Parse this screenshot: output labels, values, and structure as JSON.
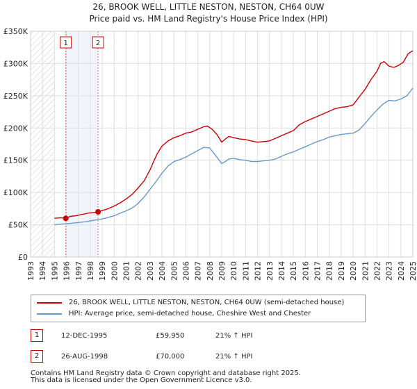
{
  "header": {
    "title_line1": "26, BROOK WELL, LITTLE NESTON, NESTON, CH64 0UW",
    "title_line2": "Price paid vs. HM Land Registry's House Price Index (HPI)"
  },
  "chart_data": {
    "type": "line",
    "x_range": [
      1993,
      2025
    ],
    "y_range": [
      0,
      350000
    ],
    "y_ticks": [
      0,
      50000,
      100000,
      150000,
      200000,
      250000,
      300000,
      350000
    ],
    "y_tick_labels": [
      "£0",
      "£50K",
      "£100K",
      "£150K",
      "£200K",
      "£250K",
      "£300K",
      "£350K"
    ],
    "x_ticks": [
      "1993",
      "1994",
      "1995",
      "1996",
      "1997",
      "1998",
      "1999",
      "2000",
      "2001",
      "2002",
      "2003",
      "2004",
      "2005",
      "2006",
      "2007",
      "2008",
      "2009",
      "2010",
      "2011",
      "2012",
      "2013",
      "2014",
      "2015",
      "2016",
      "2017",
      "2018",
      "2019",
      "2020",
      "2021",
      "2022",
      "2023",
      "2024",
      "2025"
    ],
    "grid": true,
    "hatched_until": 1995.0,
    "series": [
      {
        "name": "26, BROOK WELL, LITTLE NESTON, NESTON, CH64 0UW (semi-detached house)",
        "color": "#cc0000",
        "x": [
          1995.0,
          1995.5,
          1995.95,
          1996.3,
          1996.8,
          1997.3,
          1997.8,
          1998.3,
          1998.65,
          1999.0,
          1999.5,
          2000.0,
          2000.5,
          2001.0,
          2001.5,
          2002.0,
          2002.5,
          2003.0,
          2003.3,
          2003.6,
          2004.0,
          2004.5,
          2005.0,
          2005.5,
          2006.0,
          2006.5,
          2007.0,
          2007.5,
          2007.8,
          2008.2,
          2008.6,
          2009.0,
          2009.3,
          2009.6,
          2010.0,
          2010.5,
          2011.0,
          2011.5,
          2012.0,
          2012.5,
          2013.0,
          2013.5,
          2014.0,
          2014.5,
          2015.0,
          2015.5,
          2016.0,
          2016.5,
          2017.0,
          2017.5,
          2018.0,
          2018.5,
          2019.0,
          2019.5,
          2020.0,
          2020.5,
          2021.0,
          2021.5,
          2022.0,
          2022.3,
          2022.6,
          2023.0,
          2023.4,
          2023.8,
          2024.2,
          2024.6,
          2025.0
        ],
        "y": [
          60000,
          61000,
          59950,
          63000,
          64000,
          66000,
          68000,
          69000,
          70000,
          72000,
          75000,
          79000,
          84000,
          90000,
          97000,
          107000,
          118000,
          135000,
          148000,
          160000,
          172000,
          180000,
          185000,
          188000,
          192000,
          194000,
          198000,
          202000,
          203000,
          198000,
          190000,
          178000,
          183000,
          187000,
          185000,
          183000,
          182000,
          180000,
          178000,
          179000,
          180000,
          184000,
          188000,
          192000,
          196000,
          205000,
          210000,
          214000,
          218000,
          222000,
          226000,
          230000,
          232000,
          233000,
          236000,
          248000,
          260000,
          275000,
          288000,
          300000,
          303000,
          296000,
          294000,
          297000,
          302000,
          315000,
          320000
        ]
      },
      {
        "name": "HPI: Average price, semi-detached house, Cheshire West and Chester",
        "color": "#6699cc",
        "x": [
          1995.0,
          1995.5,
          1996.0,
          1996.5,
          1997.0,
          1997.5,
          1998.0,
          1998.5,
          1999.0,
          1999.5,
          2000.0,
          2000.5,
          2001.0,
          2001.5,
          2002.0,
          2002.5,
          2003.0,
          2003.5,
          2004.0,
          2004.5,
          2005.0,
          2005.5,
          2006.0,
          2006.5,
          2007.0,
          2007.5,
          2008.0,
          2008.5,
          2009.0,
          2009.3,
          2009.6,
          2010.0,
          2010.5,
          2011.0,
          2011.5,
          2012.0,
          2012.5,
          2013.0,
          2013.5,
          2014.0,
          2014.5,
          2015.0,
          2015.5,
          2016.0,
          2016.5,
          2017.0,
          2017.5,
          2018.0,
          2018.5,
          2019.0,
          2019.5,
          2020.0,
          2020.5,
          2021.0,
          2021.5,
          2022.0,
          2022.5,
          2023.0,
          2023.5,
          2024.0,
          2024.5,
          2025.0
        ],
        "y": [
          50000,
          51000,
          51500,
          52500,
          53500,
          54500,
          56000,
          57500,
          59000,
          61500,
          64000,
          68000,
          71500,
          76000,
          83000,
          93000,
          105000,
          117000,
          130000,
          141000,
          148000,
          151000,
          155000,
          160000,
          165000,
          170000,
          169000,
          157000,
          145000,
          148000,
          152000,
          153000,
          151000,
          150000,
          148000,
          148000,
          149000,
          150000,
          152000,
          156000,
          160000,
          163000,
          167000,
          171000,
          175000,
          179000,
          182000,
          186000,
          188000,
          190000,
          191000,
          192000,
          197000,
          207000,
          218000,
          228000,
          237000,
          243000,
          242000,
          245000,
          250000,
          262000
        ]
      }
    ],
    "sales": [
      {
        "label": "1",
        "x": 1995.95,
        "y": 59950
      },
      {
        "label": "2",
        "x": 1998.65,
        "y": 70000
      }
    ]
  },
  "legend": {
    "property_label": "26, BROOK WELL, LITTLE NESTON, NESTON, CH64 0UW (semi-detached house)",
    "hpi_label": "HPI: Average price, semi-detached house, Cheshire West and Chester"
  },
  "sales_table": [
    {
      "num": "1",
      "date": "12-DEC-1995",
      "price": "£59,950",
      "hpi": "21% ↑ HPI"
    },
    {
      "num": "2",
      "date": "26-AUG-1998",
      "price": "£70,000",
      "hpi": "21% ↑ HPI"
    }
  ],
  "footer": {
    "line1": "Contains HM Land Registry data © Crown copyright and database right 2025.",
    "line2": "This data is licensed under the Open Government Licence v3.0."
  }
}
